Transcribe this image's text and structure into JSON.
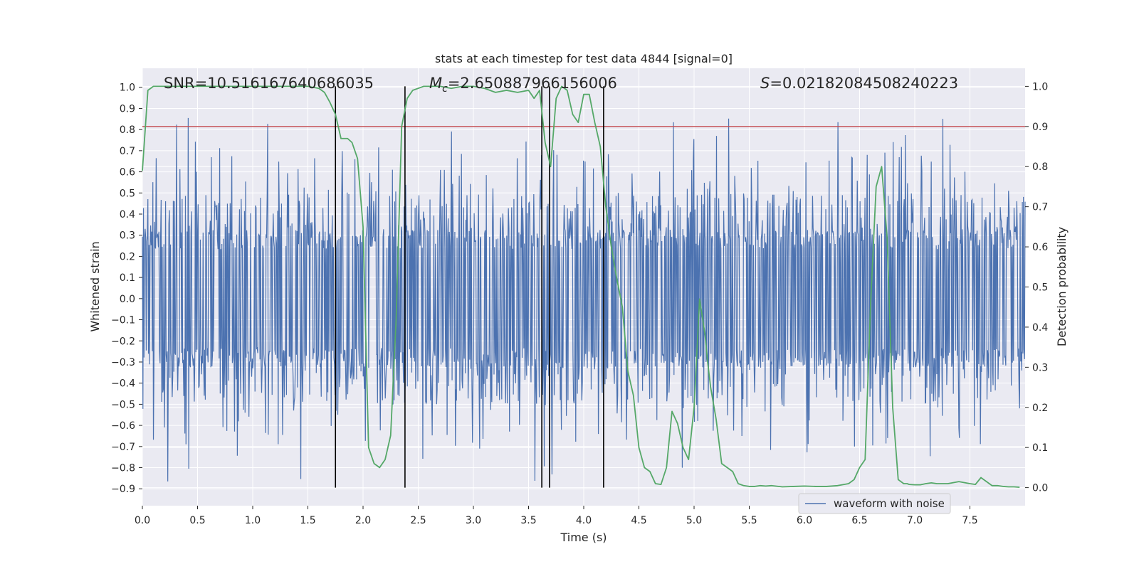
{
  "chart_data": {
    "type": "line",
    "title": "stats at each timestep for test data 4844 [signal=0]",
    "xlabel": "Time (s)",
    "ylabel_left": "Whitened strain",
    "ylabel_right": "Detection probability",
    "xlim": [
      0,
      8
    ],
    "ylim_left": [
      -0.98,
      1.09
    ],
    "ylim_right": [
      -0.045,
      1.045
    ],
    "x_ticks": [
      0.0,
      0.5,
      1.0,
      1.5,
      2.0,
      2.5,
      3.0,
      3.5,
      4.0,
      4.5,
      5.0,
      5.5,
      6.0,
      6.5,
      7.0,
      7.5
    ],
    "x_tick_labels": [
      "0.0",
      "0.5",
      "1.0",
      "1.5",
      "2.0",
      "2.5",
      "3.0",
      "3.5",
      "4.0",
      "4.5",
      "5.0",
      "5.5",
      "6.0",
      "6.5",
      "7.0",
      "7.5"
    ],
    "y_left_ticks": [
      1.0,
      0.9,
      0.8,
      0.7,
      0.6,
      0.5,
      0.4,
      0.3,
      0.2,
      0.1,
      0.0,
      -0.1,
      -0.2,
      -0.3,
      -0.4,
      -0.5,
      -0.6,
      -0.7,
      -0.8,
      -0.9
    ],
    "y_left_tick_labels": [
      "1.0",
      "0.9",
      "0.8",
      "0.7",
      "0.6",
      "0.5",
      "0.4",
      "0.3",
      "0.2",
      "0.1",
      "0.0",
      "−0.1",
      "−0.2",
      "−0.3",
      "−0.4",
      "−0.5",
      "−0.6",
      "−0.7",
      "−0.8",
      "−0.9"
    ],
    "y_right_ticks": [
      1.0,
      0.9,
      0.8,
      0.7,
      0.6,
      0.5,
      0.4,
      0.3,
      0.2,
      0.1,
      0.0
    ],
    "y_right_tick_labels": [
      "1.0",
      "0.9",
      "0.8",
      "0.7",
      "0.6",
      "0.5",
      "0.4",
      "0.3",
      "0.2",
      "0.1",
      "0.0"
    ],
    "annotations": [
      {
        "id": "snr",
        "text": "SNR=10.516167640686035"
      },
      {
        "id": "mc",
        "symbol": "M",
        "sub": "c",
        "text": "=2.650887966156006"
      },
      {
        "id": "s",
        "symbol": "S",
        "text": "=0.02182084508240223"
      }
    ],
    "threshold_line": {
      "value": 0.9,
      "axis": "right",
      "color": "#c44e52"
    },
    "vertical_lines": [
      1.75,
      2.38,
      3.62,
      3.69,
      4.18
    ],
    "waveform": {
      "name": "waveform with noise",
      "color": "#4c72b0",
      "duration": 8,
      "samples": 1600,
      "seed": 4844,
      "core_amplitude": 0.26,
      "spike_max": 0.88
    },
    "detection_probability": {
      "name": "detection probability",
      "color": "#55a868",
      "x": [
        0.0,
        0.05,
        0.1,
        0.2,
        0.3,
        0.4,
        0.5,
        0.6,
        0.7,
        0.8,
        0.9,
        1.0,
        1.1,
        1.2,
        1.3,
        1.4,
        1.5,
        1.6,
        1.65,
        1.7,
        1.75,
        1.8,
        1.86,
        1.9,
        1.95,
        2.0,
        2.05,
        2.1,
        2.15,
        2.2,
        2.25,
        2.3,
        2.35,
        2.4,
        2.45,
        2.5,
        2.55,
        2.6,
        2.7,
        2.8,
        2.9,
        3.0,
        3.1,
        3.2,
        3.3,
        3.4,
        3.5,
        3.55,
        3.6,
        3.65,
        3.7,
        3.75,
        3.8,
        3.85,
        3.9,
        3.95,
        4.0,
        4.05,
        4.1,
        4.15,
        4.2,
        4.25,
        4.3,
        4.35,
        4.4,
        4.45,
        4.5,
        4.55,
        4.6,
        4.65,
        4.7,
        4.75,
        4.8,
        4.85,
        4.9,
        4.95,
        5.0,
        5.05,
        5.1,
        5.12,
        5.15,
        5.2,
        5.25,
        5.3,
        5.35,
        5.4,
        5.45,
        5.5,
        5.55,
        5.6,
        5.65,
        5.7,
        5.8,
        5.9,
        6.0,
        6.1,
        6.2,
        6.3,
        6.4,
        6.45,
        6.5,
        6.55,
        6.6,
        6.65,
        6.7,
        6.75,
        6.8,
        6.85,
        6.9,
        6.93,
        6.95,
        7.0,
        7.05,
        7.1,
        7.15,
        7.2,
        7.3,
        7.4,
        7.5,
        7.55,
        7.6,
        7.65,
        7.7,
        7.75,
        7.8,
        7.85,
        7.9,
        7.95
      ],
      "y": [
        0.79,
        0.99,
        1.0,
        1.0,
        1.0,
        1.0,
        1.0,
        1.0,
        1.0,
        1.0,
        1.0,
        1.0,
        1.0,
        1.0,
        1.0,
        1.0,
        1.0,
        0.995,
        0.985,
        0.96,
        0.93,
        0.87,
        0.87,
        0.86,
        0.82,
        0.65,
        0.1,
        0.06,
        0.05,
        0.07,
        0.13,
        0.42,
        0.9,
        0.97,
        0.99,
        0.995,
        1.0,
        1.0,
        1.0,
        0.995,
        1.0,
        1.0,
        0.995,
        0.985,
        0.99,
        0.985,
        0.99,
        0.97,
        0.99,
        0.86,
        0.8,
        0.97,
        1.0,
        0.99,
        0.93,
        0.91,
        0.98,
        0.98,
        0.91,
        0.85,
        0.7,
        0.6,
        0.52,
        0.45,
        0.29,
        0.23,
        0.1,
        0.05,
        0.04,
        0.01,
        0.008,
        0.05,
        0.19,
        0.16,
        0.1,
        0.07,
        0.2,
        0.47,
        0.38,
        0.32,
        0.25,
        0.17,
        0.06,
        0.05,
        0.04,
        0.01,
        0.005,
        0.003,
        0.003,
        0.005,
        0.004,
        0.005,
        0.002,
        0.003,
        0.004,
        0.003,
        0.003,
        0.005,
        0.01,
        0.02,
        0.05,
        0.07,
        0.46,
        0.75,
        0.8,
        0.62,
        0.2,
        0.02,
        0.01,
        0.01,
        0.008,
        0.007,
        0.007,
        0.01,
        0.012,
        0.01,
        0.01,
        0.015,
        0.01,
        0.008,
        0.025,
        0.015,
        0.005,
        0.005,
        0.003,
        0.002,
        0.002,
        0.001
      ]
    },
    "legend": {
      "entries": [
        "waveform with noise"
      ],
      "position": "lower-right"
    },
    "grid": true
  }
}
